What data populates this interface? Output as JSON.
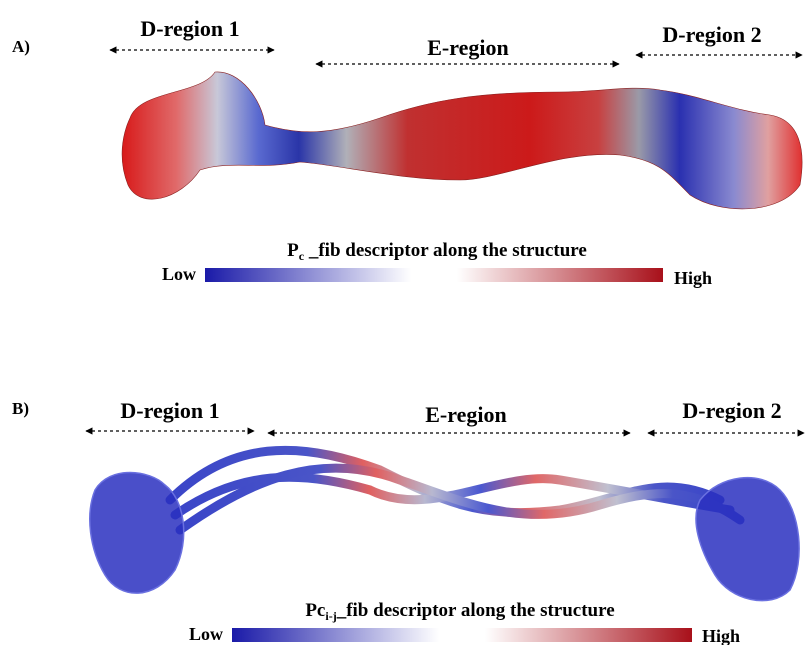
{
  "panels": [
    {
      "label": "A)",
      "regions": [
        "D-region 1",
        "E-region",
        "D-region 2"
      ],
      "descriptor": {
        "main": "P",
        "sub": "c",
        "rest": " _fib descriptor along the structure"
      },
      "low": "Low",
      "high": "High"
    },
    {
      "label": "B)",
      "regions": [
        "D-region 1",
        "E-region",
        "D-region 2"
      ],
      "descriptor": {
        "main": "Pc",
        "sub": "i-j",
        "rest": "_fib descriptor along the structure"
      },
      "low": "Low",
      "high": "High"
    }
  ]
}
